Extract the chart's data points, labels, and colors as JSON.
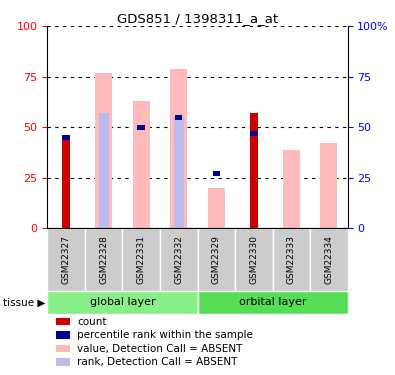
{
  "title": "GDS851 / 1398311_a_at",
  "samples": [
    "GSM22327",
    "GSM22328",
    "GSM22331",
    "GSM22332",
    "GSM22329",
    "GSM22330",
    "GSM22333",
    "GSM22334"
  ],
  "count_values": [
    44,
    0,
    0,
    0,
    0,
    57,
    0,
    0
  ],
  "percentile_rank_values": [
    45,
    0,
    50,
    55,
    27,
    47,
    0,
    0
  ],
  "value_absent": [
    0,
    77,
    63,
    79,
    20,
    0,
    39,
    42
  ],
  "rank_absent": [
    0,
    57,
    0,
    55,
    0,
    0,
    0,
    0
  ],
  "colors": {
    "count": "#cc0000",
    "percentile_rank": "#000099",
    "value_absent": "#ffbbbb",
    "rank_absent": "#bbbbee",
    "global_layer_bg": "#88ee88",
    "orbital_layer_bg": "#55dd55",
    "sample_box": "#cccccc"
  },
  "ylim": [
    0,
    100
  ],
  "yticks": [
    0,
    25,
    50,
    75,
    100
  ],
  "groups": [
    {
      "label": "global layer",
      "start": 0,
      "end": 4,
      "color": "#88ee88"
    },
    {
      "label": "orbital layer",
      "start": 4,
      "end": 8,
      "color": "#55dd55"
    }
  ],
  "legend_items": [
    {
      "label": "count",
      "color": "#cc0000"
    },
    {
      "label": "percentile rank within the sample",
      "color": "#000099"
    },
    {
      "label": "value, Detection Call = ABSENT",
      "color": "#ffbbbb"
    },
    {
      "label": "rank, Detection Call = ABSENT",
      "color": "#bbbbee"
    }
  ]
}
